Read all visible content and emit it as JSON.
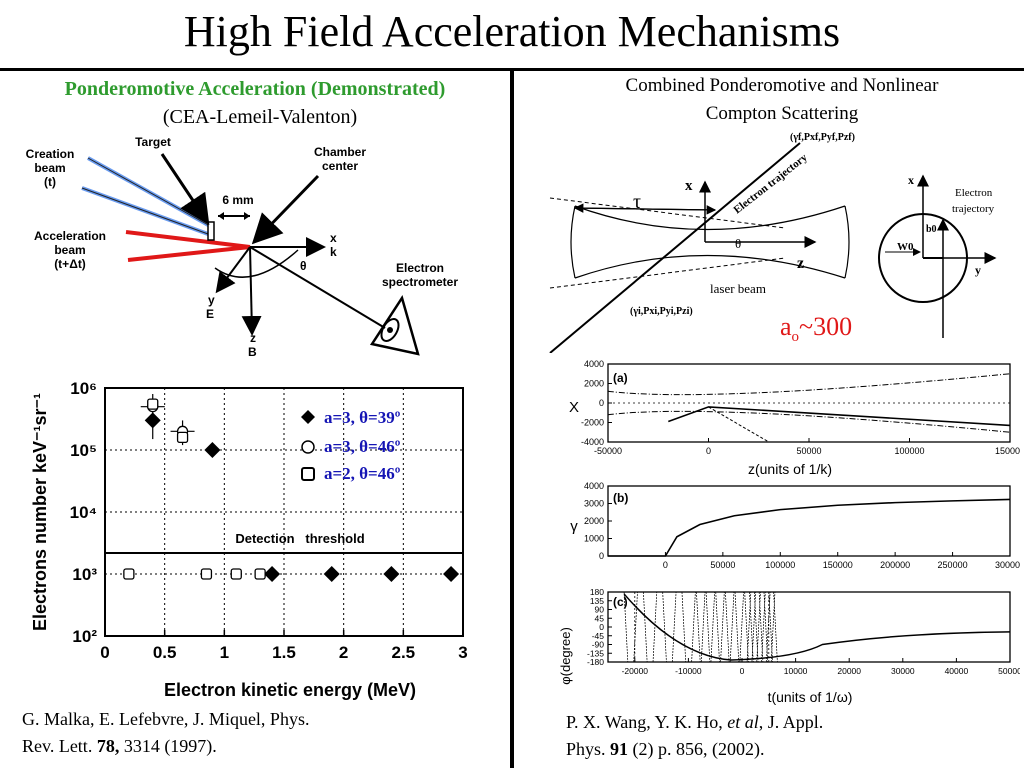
{
  "title": "High Field Acceleration Mechanisms",
  "left": {
    "heading": "Ponderomotive Acceleration (Demonstrated)",
    "subheading": "(CEA-Lemeil-Valenton)",
    "setup": {
      "creation_beam": [
        "Creation",
        "beam",
        "(t)"
      ],
      "target": "Target",
      "chamber": [
        "Chamber",
        "center"
      ],
      "distance": "6 mm",
      "acceleration_beam": [
        "Acceleration",
        "beam",
        "(t+Δt)"
      ],
      "axis_xk": [
        "x",
        "k"
      ],
      "theta": "θ",
      "axis_yE": [
        "y",
        "E"
      ],
      "axis_zB": [
        "z",
        "B"
      ],
      "spectrometer": [
        "Electron",
        "spectrometer"
      ]
    },
    "citation": {
      "line1": "G. Malka, E. Lefebvre, J. Miquel, Phys.",
      "line2_pre": "Rev. Lett. ",
      "volume": "78,",
      "line2_post": " 3314 (1997)."
    }
  },
  "right": {
    "heading_line1": "Combined Ponderomotive and Nonlinear",
    "heading_line2": "Compton Scattering",
    "diagram": {
      "tau": "τ",
      "x": "x",
      "z": "z",
      "theta": "θ",
      "laser": "laser beam",
      "electron_trajectory": "Electron trajectory",
      "final_state": "(γf,Pxf,Pyf,Pzf)",
      "initial_state": "(γi,Pxi,Pyi,Pzi)",
      "x2": "x",
      "y2": "y",
      "w0": "W0",
      "b0": "b0",
      "electron_trajectory2": [
        "Electron",
        "trajectory"
      ]
    },
    "a0_label": "ao~300",
    "citation": {
      "line1_pre": "P. X. Wang, Y. K. Ho, ",
      "etal": "et al",
      "line1_post": ", J. Appl.",
      "line2_pre": "Phys. ",
      "volume": "91",
      "line2_post": " (2) p. 856, (2002)."
    }
  },
  "chart_data": [
    {
      "type": "scatter",
      "xlabel": "Electron kinetic energy (MeV)",
      "ylabel": "Electrons number keV⁻¹sr⁻¹",
      "xlim": [
        0,
        3
      ],
      "ylim_exp": [
        2,
        6
      ],
      "log_y": true,
      "xticks": [
        "0",
        "0.5",
        "1",
        "1.5",
        "2",
        "2.5",
        "3"
      ],
      "yticks": [
        "10²",
        "10³",
        "10⁴",
        "10⁵",
        "10⁶"
      ],
      "annotation": "Detection   threshold",
      "threshold": 1500,
      "legend": [
        "a=3, θ=39º",
        "a=3, θ=46º",
        "a=2, θ=46º"
      ],
      "legend_position": "top-right",
      "series": [
        {
          "name": "a=3, θ=39º",
          "marker": "diamond",
          "x": [
            0.4,
            0.9,
            1.4,
            1.9,
            2.4,
            2.9
          ],
          "y": [
            300000,
            100000,
            1000,
            1000,
            1000,
            1000
          ]
        },
        {
          "name": "a=3, θ=46º",
          "marker": "circle",
          "x": [
            0.4,
            0.65
          ],
          "y": [
            500000,
            200000
          ],
          "yerr": [
            [
              150000,
              800000
            ],
            [
              120000,
              300000
            ]
          ]
        },
        {
          "name": "a=2, θ=46º",
          "marker": "square",
          "x": [
            0.2,
            0.4,
            0.65,
            0.85,
            1.1,
            1.3
          ],
          "y": [
            1000,
            550000,
            160000,
            1000,
            1000,
            1000
          ]
        }
      ]
    },
    {
      "type": "line",
      "panel": "(a)",
      "xlabel": "z(units of 1/k)",
      "ylabel": "X",
      "xlim": [
        -50000,
        150000
      ],
      "ylim": [
        -4000,
        4000
      ],
      "xticks": [
        -50000,
        0,
        50000,
        100000,
        150000
      ],
      "yticks": [
        -4000,
        -2000,
        0,
        2000,
        4000
      ]
    },
    {
      "type": "line",
      "panel": "(b)",
      "xlabel": "",
      "ylabel": "γ",
      "xlim": [
        -50000,
        300000
      ],
      "ylim": [
        0,
        4000
      ],
      "xticks": [
        0,
        50000,
        100000,
        150000,
        200000,
        250000,
        300000
      ],
      "yticks": [
        0,
        1000,
        2000,
        3000,
        4000
      ],
      "x": [
        -50000,
        0,
        10000,
        30000,
        60000,
        100000,
        150000,
        200000,
        250000,
        300000
      ],
      "y": [
        0,
        0,
        1100,
        1800,
        2300,
        2650,
        2900,
        3050,
        3150,
        3230
      ]
    },
    {
      "type": "line",
      "panel": "(c)",
      "xlabel": "t(units of 1/ω)",
      "ylabel": "φ(degree)",
      "xlim": [
        -25000,
        50000
      ],
      "ylim": [
        -180,
        180
      ],
      "xticks": [
        -20000,
        -10000,
        0,
        10000,
        20000,
        30000,
        40000,
        50000
      ],
      "yticks": [
        -180,
        -135,
        -90,
        -45,
        0,
        45,
        90,
        135,
        180
      ]
    }
  ]
}
